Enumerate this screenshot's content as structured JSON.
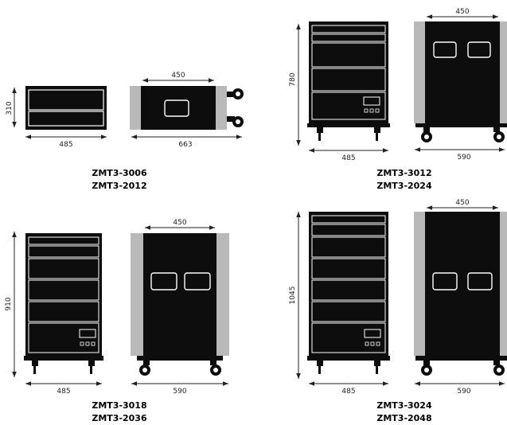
{
  "units": [
    {
      "key": "u1",
      "models": [
        "ZMT3-3006",
        "ZMT3-2012"
      ],
      "front": {
        "height": "310",
        "width": "485"
      },
      "side": {
        "depth": "450",
        "overall": "663"
      }
    },
    {
      "key": "u2",
      "models": [
        "ZMT3-3012",
        "ZMT3-2024"
      ],
      "front": {
        "height": "780",
        "width": "485"
      },
      "side": {
        "depth": "450",
        "overall": "590"
      }
    },
    {
      "key": "u3",
      "models": [
        "ZMT3-3018",
        "ZMT3-2036"
      ],
      "front": {
        "height": "910",
        "width": "485"
      },
      "side": {
        "depth": "450",
        "overall": "590"
      }
    },
    {
      "key": "u4",
      "models": [
        "ZMT3-3024",
        "ZMT3-2048"
      ],
      "front": {
        "height": "1045",
        "width": "485"
      },
      "side": {
        "depth": "450",
        "overall": "590"
      }
    }
  ],
  "colors": {
    "body": "#0d0d0d",
    "panel": "#b9b9b9",
    "line": "#ffffff"
  }
}
